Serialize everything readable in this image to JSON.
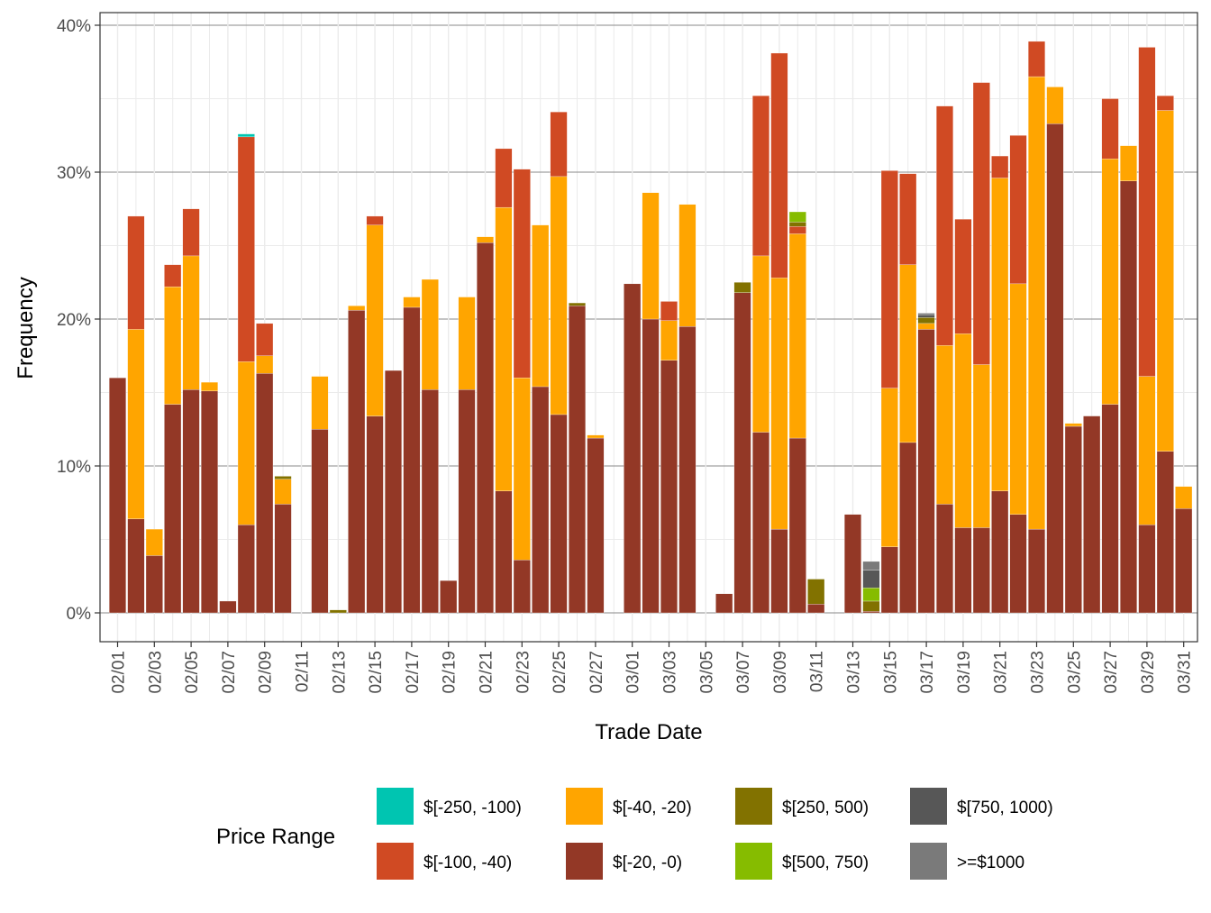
{
  "chart_data": {
    "type": "bar",
    "stacked": true,
    "xlabel": "Trade Date",
    "ylabel": "Frequency",
    "ylim": [
      0,
      0.4
    ],
    "y_ticks": [
      0,
      0.1,
      0.2,
      0.3,
      0.4
    ],
    "y_tick_labels": [
      "0%",
      "10%",
      "20%",
      "30%",
      "40%"
    ],
    "grid": true,
    "legend_position": "bottom",
    "legend_title": "Price Range",
    "x_tick_labels": [
      "02/01",
      "02/03",
      "02/05",
      "02/07",
      "02/09",
      "02/11",
      "02/13",
      "02/15",
      "02/17",
      "02/19",
      "02/21",
      "02/23",
      "02/25",
      "02/27",
      "03/01",
      "03/03",
      "03/05",
      "03/07",
      "03/09",
      "03/11",
      "03/13",
      "03/15",
      "03/17",
      "03/19",
      "03/21",
      "03/23",
      "03/25",
      "03/27",
      "03/29",
      "03/31"
    ],
    "categories": [
      "02/01",
      "02/02",
      "02/03",
      "02/04",
      "02/05",
      "02/06",
      "02/07",
      "02/08",
      "02/09",
      "02/10",
      "02/11",
      "02/12",
      "02/13",
      "02/14",
      "02/15",
      "02/16",
      "02/17",
      "02/18",
      "02/19",
      "02/20",
      "02/21",
      "02/22",
      "02/23",
      "02/24",
      "02/25",
      "02/26",
      "02/27",
      "02/28",
      "03/01",
      "03/02",
      "03/03",
      "03/04",
      "03/05",
      "03/06",
      "03/07",
      "03/08",
      "03/09",
      "03/10",
      "03/11",
      "03/12",
      "03/13",
      "03/14",
      "03/15",
      "03/16",
      "03/17",
      "03/18",
      "03/19",
      "03/20",
      "03/21",
      "03/22",
      "03/23",
      "03/24",
      "03/25",
      "03/26",
      "03/27",
      "03/28",
      "03/29",
      "03/30",
      "03/31"
    ],
    "series": [
      {
        "name": "$[-20, -0)",
        "color": "#933826",
        "values": [
          0.16,
          0.064,
          0.039,
          0.142,
          0.152,
          0.151,
          0.008,
          0.06,
          0.163,
          0.074,
          0,
          0.125,
          0,
          0.206,
          0.134,
          0.165,
          0.208,
          0.152,
          0.022,
          0.152,
          0.252,
          0.083,
          0.036,
          0.154,
          0.135,
          0.209,
          0.119,
          0,
          0.224,
          0.2,
          0.172,
          0.195,
          0,
          0.013,
          0.218,
          0.123,
          0.057,
          0.119,
          0.006,
          0,
          0.067,
          0.001,
          0.045,
          0.116,
          0.193,
          0.074,
          0.058,
          0.058,
          0.083,
          0.067,
          0.057,
          0.333,
          0.127,
          0.134,
          0.142,
          0.294,
          0.06,
          0.11,
          0.071
        ]
      },
      {
        "name": "$[-40, -20)",
        "color": "#FFA500",
        "values": [
          0,
          0.129,
          0.018,
          0.08,
          0.091,
          0.006,
          0,
          0.111,
          0.012,
          0.017,
          0,
          0.036,
          0,
          0.003,
          0.13,
          0,
          0.007,
          0.075,
          0,
          0.063,
          0.004,
          0.193,
          0.124,
          0.11,
          0.162,
          0,
          0.002,
          0,
          0,
          0.086,
          0.027,
          0.083,
          0,
          0,
          0,
          0.12,
          0.171,
          0.139,
          0,
          0,
          0,
          0,
          0.108,
          0.121,
          0.004,
          0.108,
          0.132,
          0.111,
          0.213,
          0.157,
          0.308,
          0.025,
          0.002,
          0,
          0.167,
          0.024,
          0.101,
          0.232,
          0.015
        ]
      },
      {
        "name": "$[-100, -40)",
        "color": "#D04A23",
        "values": [
          0,
          0.077,
          0,
          0.015,
          0.032,
          0,
          0,
          0.153,
          0.022,
          0,
          0,
          0,
          0,
          0,
          0.006,
          0,
          0,
          0,
          0,
          0,
          0,
          0.04,
          0.142,
          0,
          0.044,
          0,
          0,
          0,
          0,
          0,
          0.013,
          0,
          0,
          0,
          0,
          0.109,
          0.153,
          0.005,
          0,
          0,
          0,
          0,
          0.148,
          0.062,
          0,
          0.163,
          0.078,
          0.192,
          0.015,
          0.101,
          0.024,
          0,
          0,
          0,
          0.041,
          0,
          0.224,
          0.01,
          0
        ]
      },
      {
        "name": "$[-250, -100)",
        "color": "#00C5B1",
        "values": [
          0,
          0,
          0,
          0,
          0,
          0,
          0,
          0.002,
          0,
          0,
          0,
          0,
          0,
          0,
          0,
          0,
          0,
          0,
          0,
          0,
          0,
          0,
          0,
          0,
          0,
          0,
          0,
          0,
          0,
          0,
          0,
          0,
          0,
          0,
          0,
          0,
          0,
          0,
          0,
          0,
          0,
          0,
          0,
          0,
          0,
          0,
          0,
          0,
          0,
          0,
          0,
          0,
          0,
          0,
          0,
          0,
          0,
          0,
          0
        ]
      },
      {
        "name": "$[250, 500)",
        "color": "#827200",
        "values": [
          0,
          0,
          0,
          0,
          0,
          0,
          0,
          0,
          0,
          0.002,
          0,
          0,
          0.002,
          0,
          0,
          0,
          0,
          0,
          0,
          0,
          0,
          0,
          0,
          0,
          0,
          0.002,
          0,
          0,
          0,
          0,
          0,
          0,
          0,
          0,
          0.007,
          0,
          0,
          0.003,
          0.017,
          0,
          0,
          0.007,
          0,
          0,
          0.004,
          0,
          0,
          0,
          0,
          0,
          0,
          0,
          0,
          0,
          0,
          0,
          0,
          0,
          0
        ]
      },
      {
        "name": "$[500, 750)",
        "color": "#86BC00",
        "values": [
          0,
          0,
          0,
          0,
          0,
          0,
          0,
          0,
          0,
          0,
          0,
          0,
          0,
          0,
          0,
          0,
          0,
          0,
          0,
          0,
          0,
          0,
          0,
          0,
          0,
          0,
          0,
          0,
          0,
          0,
          0,
          0,
          0,
          0,
          0,
          0,
          0,
          0.007,
          0,
          0,
          0,
          0.009,
          0,
          0,
          0,
          0,
          0,
          0,
          0,
          0,
          0,
          0,
          0,
          0,
          0,
          0,
          0,
          0,
          0
        ]
      },
      {
        "name": "$[750, 1000)",
        "color": "#575757",
        "values": [
          0,
          0,
          0,
          0,
          0,
          0,
          0,
          0,
          0,
          0,
          0,
          0,
          0,
          0,
          0,
          0,
          0,
          0,
          0,
          0,
          0,
          0,
          0,
          0,
          0,
          0,
          0,
          0,
          0,
          0,
          0,
          0,
          0,
          0,
          0,
          0,
          0,
          0,
          0,
          0,
          0,
          0.012,
          0,
          0,
          0.002,
          0,
          0,
          0,
          0,
          0,
          0,
          0,
          0,
          0,
          0,
          0,
          0,
          0,
          0
        ]
      },
      {
        "name": ">=$1000",
        "color": "#7A7A7A",
        "values": [
          0,
          0,
          0,
          0,
          0,
          0,
          0,
          0,
          0,
          0,
          0,
          0,
          0,
          0,
          0,
          0,
          0,
          0,
          0,
          0,
          0,
          0,
          0,
          0,
          0,
          0,
          0,
          0,
          0,
          0,
          0,
          0,
          0,
          0,
          0,
          0,
          0,
          0,
          0,
          0,
          0,
          0.006,
          0,
          0,
          0.001,
          0,
          0,
          0,
          0,
          0,
          0,
          0,
          0,
          0,
          0,
          0,
          0,
          0,
          0
        ]
      }
    ],
    "legend_order": [
      "$[-250, -100)",
      "$[-100, -40)",
      "$[-40, -20)",
      "$[-20, -0)",
      "$[250, 500)",
      "$[500, 750)",
      "$[750, 1000)",
      ">=$1000"
    ]
  }
}
